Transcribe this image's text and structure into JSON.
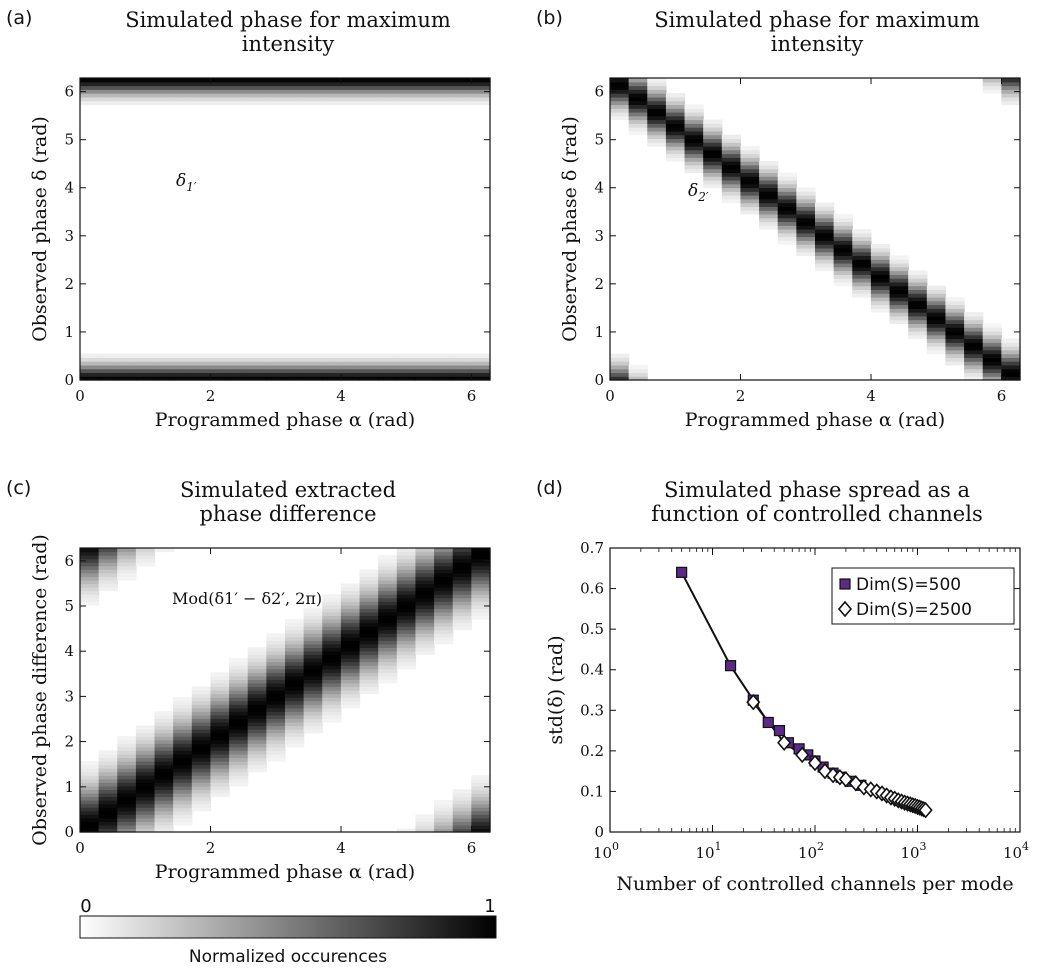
{
  "chart_data": [
    {
      "panel": "(a)",
      "type": "heatmap",
      "title": [
        "Simulated phase for maximum",
        "intensity"
      ],
      "xlabel": "Programmed phase α (rad)",
      "ylabel": "Observed phase δ (rad)",
      "xlim": [
        0,
        6.283
      ],
      "ylim": [
        0,
        6.283
      ],
      "xticks": [
        "0",
        "2",
        "4",
        "6"
      ],
      "yticks": [
        "0",
        "1",
        "2",
        "3",
        "4",
        "5",
        "6"
      ],
      "annotation": "δ1′",
      "band": {
        "kind": "horizontal",
        "centers": [
          0.0,
          6.283
        ],
        "width": 0.22
      }
    },
    {
      "panel": "(b)",
      "type": "heatmap",
      "title": [
        "Simulated phase for maximum",
        "intensity"
      ],
      "xlabel": "Programmed phase α (rad)",
      "ylabel": "Observed phase δ (rad)",
      "xlim": [
        0,
        6.283
      ],
      "ylim": [
        0,
        6.283
      ],
      "xticks": [
        "0",
        "2",
        "4",
        "6"
      ],
      "yticks": [
        "0",
        "1",
        "2",
        "3",
        "4",
        "5",
        "6"
      ],
      "annotation": "δ2′",
      "band": {
        "kind": "diagonal",
        "slope": -1,
        "intercept": 6.283,
        "width": 0.28
      }
    },
    {
      "panel": "(c)",
      "type": "heatmap",
      "title": [
        "Simulated extracted",
        "phase difference"
      ],
      "xlabel": "Programmed phase α (rad)",
      "ylabel": "Observed phase difference (rad)",
      "xlim": [
        0,
        6.283
      ],
      "ylim": [
        0,
        6.283
      ],
      "xticks": [
        "0",
        "2",
        "4",
        "6"
      ],
      "yticks": [
        "0",
        "1",
        "2",
        "3",
        "4",
        "5",
        "6"
      ],
      "annotation": "Mod(δ1′ − δ2′, 2π)",
      "band": {
        "kind": "diagonal",
        "slope": 1,
        "intercept": 0,
        "width": 0.55
      }
    },
    {
      "panel": "(d)",
      "type": "scatter",
      "title": [
        "Simulated phase spread as a",
        "function of controlled channels"
      ],
      "xlabel": "Number of controlled channels per mode",
      "ylabel": "std(δ) (rad)",
      "xscale": "log",
      "xlim": [
        1,
        10000
      ],
      "ylim": [
        0,
        0.7
      ],
      "xticks": [
        {
          "base": "10",
          "exp": "0"
        },
        {
          "base": "10",
          "exp": "1"
        },
        {
          "base": "10",
          "exp": "2"
        },
        {
          "base": "10",
          "exp": "3"
        },
        {
          "base": "10",
          "exp": "4"
        }
      ],
      "yticks": [
        "0",
        "0.1",
        "0.2",
        "0.3",
        "0.4",
        "0.5",
        "0.6",
        "0.7"
      ],
      "legend_position": "top-right",
      "series": [
        {
          "name": "Dim(S)=500",
          "marker": "square",
          "color": "#5a2a86",
          "x": [
            5,
            15,
            25,
            35,
            45,
            55,
            70,
            85,
            100,
            120,
            150,
            180,
            220,
            280
          ],
          "y": [
            0.64,
            0.41,
            0.325,
            0.27,
            0.25,
            0.22,
            0.205,
            0.19,
            0.175,
            0.16,
            0.145,
            0.135,
            0.125,
            0.115
          ]
        },
        {
          "name": "Dim(S)=2500",
          "marker": "diamond",
          "color": "#ffffff",
          "x": [
            25,
            50,
            75,
            100,
            125,
            150,
            175,
            200,
            250,
            300,
            350,
            400,
            450,
            500,
            550,
            600,
            650,
            700,
            750,
            800,
            850,
            900,
            950,
            1000,
            1050,
            1100,
            1150,
            1200
          ],
          "y": [
            0.32,
            0.22,
            0.19,
            0.17,
            0.15,
            0.14,
            0.135,
            0.13,
            0.12,
            0.11,
            0.105,
            0.1,
            0.095,
            0.09,
            0.085,
            0.082,
            0.078,
            0.075,
            0.072,
            0.07,
            0.068,
            0.066,
            0.064,
            0.062,
            0.06,
            0.058,
            0.056,
            0.054
          ]
        }
      ]
    }
  ],
  "colorbar": {
    "min_label": "0",
    "max_label": "1",
    "label": "Normalized occurences"
  },
  "colors": {
    "ink": "#111111",
    "purple": "#5a2a86"
  }
}
